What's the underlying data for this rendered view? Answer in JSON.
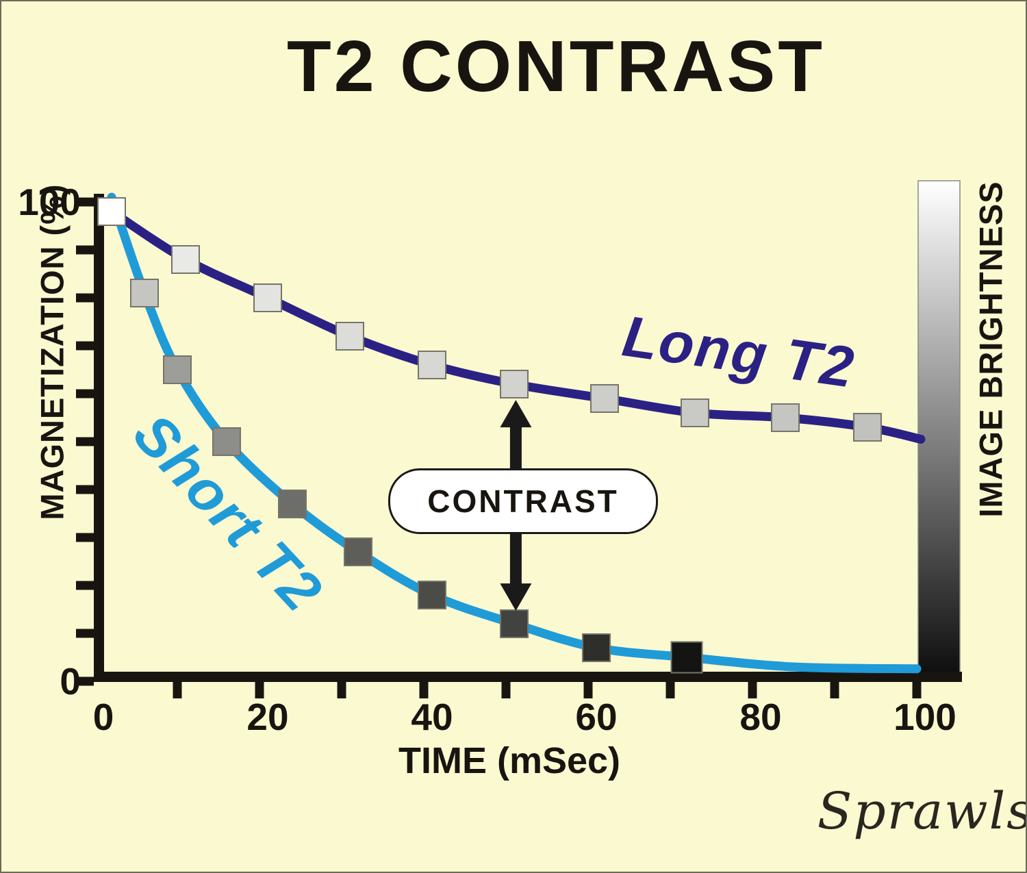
{
  "signature": "Sprawls",
  "colors": {
    "background": "#fbf9d0",
    "axis": "#181511",
    "marker_stroke": "#75756a",
    "arrow": "#1a1a1a",
    "contrast_box_bg": "#ffffff"
  },
  "chart_data": {
    "type": "line",
    "title": "T2 CONTRAST",
    "xlabel": "TIME (mSec)",
    "ylabel": "MAGNETIZATION (%)",
    "xlim": [
      0,
      100
    ],
    "ylim": [
      0,
      100
    ],
    "grid": false,
    "legend": "inline rotated labels on curves",
    "x_ticks": {
      "minor_step": 10,
      "labels": [
        {
          "v": 0,
          "label": "0"
        },
        {
          "v": 20,
          "label": "20"
        },
        {
          "v": 40,
          "label": "40"
        },
        {
          "v": 60,
          "label": "60"
        },
        {
          "v": 80,
          "label": "80"
        },
        {
          "v": 100,
          "label": "100"
        }
      ]
    },
    "y_ticks": {
      "minor_step": 10,
      "labels": [
        {
          "v": 100,
          "label": "100"
        },
        {
          "v": 0,
          "label": "0"
        }
      ]
    },
    "series": [
      {
        "name": "Long T2",
        "label": "Long T2",
        "curve_color": "#2b2184",
        "label_color": "#2b2184",
        "markers": [
          {
            "t": 2,
            "m": 98,
            "fill": "#ffffff"
          },
          {
            "t": 11,
            "m": 88,
            "fill": "#e9e9e6"
          },
          {
            "t": 21,
            "m": 80,
            "fill": "#e3e3e0"
          },
          {
            "t": 31,
            "m": 72,
            "fill": "#dcdcd9"
          },
          {
            "t": 41,
            "m": 66,
            "fill": "#d7d7d4"
          },
          {
            "t": 51,
            "m": 62,
            "fill": "#d2d2cf"
          },
          {
            "t": 62,
            "m": 59,
            "fill": "#cdcdca"
          },
          {
            "t": 73,
            "m": 56,
            "fill": "#c9c9c6"
          },
          {
            "t": 84,
            "m": 55,
            "fill": "#c5c5c2"
          },
          {
            "t": 94,
            "m": 53,
            "fill": "#c1c1be"
          }
        ],
        "curve_head": [],
        "curve_tail": [
          {
            "t": 100.5,
            "m": 50.5
          }
        ]
      },
      {
        "name": "Short T2",
        "label": "Short T2",
        "curve_color": "#1f9bd8",
        "label_color": "#1f9bd8",
        "markers": [
          {
            "t": 6,
            "m": 81,
            "fill": "#c5c5c2"
          },
          {
            "t": 10,
            "m": 65,
            "fill": "#9d9d9a"
          },
          {
            "t": 16,
            "m": 50,
            "fill": "#8d8d8a"
          },
          {
            "t": 24,
            "m": 37,
            "fill": "#6d6d6a"
          },
          {
            "t": 32,
            "m": 27,
            "fill": "#5d5d5a"
          },
          {
            "t": 41,
            "m": 18,
            "fill": "#4b4b48"
          },
          {
            "t": 51,
            "m": 12,
            "fill": "#424240"
          },
          {
            "t": 61,
            "m": 7,
            "fill": "#2e2e2b"
          },
          {
            "t": 72,
            "m": 5,
            "fill": "#141412",
            "size": 45
          }
        ],
        "curve_head": [
          {
            "t": 2,
            "m": 101
          }
        ],
        "curve_tail": [
          {
            "t": 85,
            "m": 3
          },
          {
            "t": 100,
            "m": 2.6
          }
        ]
      }
    ],
    "annotations": {
      "contrast_label": "CONTRAST",
      "arrow": {
        "t": 51.2,
        "m_from": 58.7,
        "m_to": 14.7
      }
    },
    "brightness_bar": {
      "label": "IMAGE BRIGHTNESS",
      "top_color": "#ffffff",
      "bottom_color": "#0c0c0c"
    }
  }
}
